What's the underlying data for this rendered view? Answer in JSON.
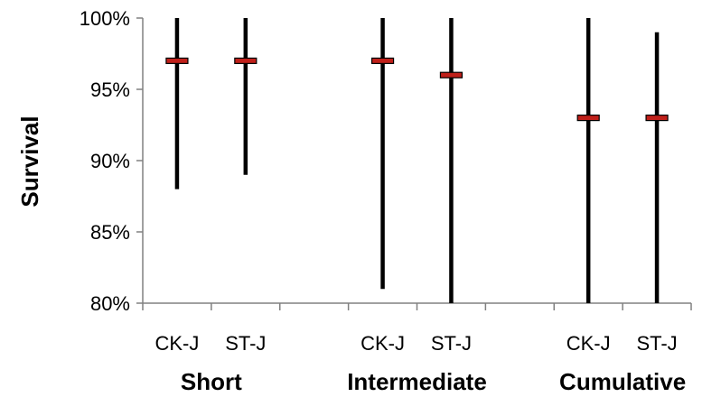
{
  "chart_data": {
    "type": "errorbar",
    "ylabel": "Survival",
    "ylim": [
      80,
      100
    ],
    "yticks": [
      "80%",
      "85%",
      "90%",
      "95%",
      "100%"
    ],
    "groups": [
      "Short",
      "Intermediate",
      "Cumulative"
    ],
    "categories": [
      "CK-J",
      "ST-J",
      "CK-J",
      "ST-J",
      "CK-J",
      "ST-J"
    ],
    "points": [
      {
        "group": "Short",
        "category": "CK-J",
        "estimate": 97,
        "lower": 88,
        "upper": 100
      },
      {
        "group": "Short",
        "category": "ST-J",
        "estimate": 97,
        "lower": 89,
        "upper": 100
      },
      {
        "group": "Intermediate",
        "category": "CK-J",
        "estimate": 97,
        "lower": 81,
        "upper": 100
      },
      {
        "group": "Intermediate",
        "category": "ST-J",
        "estimate": 96,
        "lower": 80,
        "upper": 100
      },
      {
        "group": "Cumulative",
        "category": "CK-J",
        "estimate": 93,
        "lower": 80,
        "upper": 100
      },
      {
        "group": "Cumulative",
        "category": "ST-J",
        "estimate": 93,
        "lower": 80,
        "upper": 99
      }
    ],
    "colors": {
      "range_line": "#000000",
      "estimate_marker": "#c0201a",
      "axis": "#808080"
    }
  }
}
